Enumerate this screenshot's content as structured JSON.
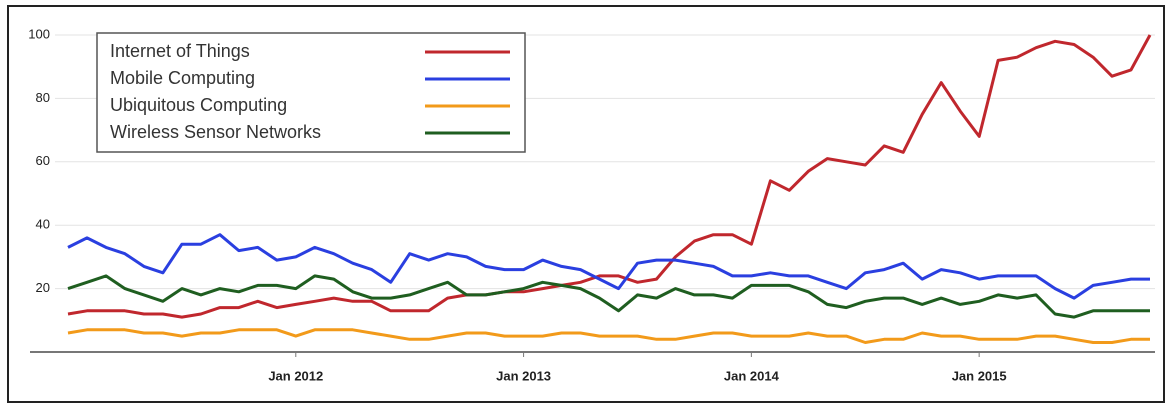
{
  "chart_data": {
    "type": "line",
    "x": [
      "2011-01",
      "2011-02",
      "2011-03",
      "2011-04",
      "2011-05",
      "2011-06",
      "2011-07",
      "2011-08",
      "2011-09",
      "2011-10",
      "2011-11",
      "2011-12",
      "2012-01",
      "2012-02",
      "2012-03",
      "2012-04",
      "2012-05",
      "2012-06",
      "2012-07",
      "2012-08",
      "2012-09",
      "2012-10",
      "2012-11",
      "2012-12",
      "2013-01",
      "2013-02",
      "2013-03",
      "2013-04",
      "2013-05",
      "2013-06",
      "2013-07",
      "2013-08",
      "2013-09",
      "2013-10",
      "2013-11",
      "2013-12",
      "2014-01",
      "2014-02",
      "2014-03",
      "2014-04",
      "2014-05",
      "2014-06",
      "2014-07",
      "2014-08",
      "2014-09",
      "2014-10",
      "2014-11",
      "2014-12",
      "2015-01",
      "2015-02",
      "2015-03",
      "2015-04",
      "2015-05",
      "2015-06",
      "2015-07",
      "2015-08",
      "2015-09",
      "2015-10"
    ],
    "series": [
      {
        "name": "Internet of Things",
        "color": "#c0272d",
        "values": [
          12,
          13,
          13,
          13,
          12,
          12,
          11,
          12,
          14,
          14,
          16,
          14,
          15,
          16,
          17,
          16,
          16,
          13,
          13,
          13,
          17,
          18,
          18,
          19,
          19,
          20,
          21,
          22,
          24,
          24,
          22,
          23,
          30,
          35,
          37,
          37,
          34,
          54,
          51,
          57,
          61,
          60,
          59,
          65,
          63,
          75,
          85,
          76,
          68,
          92,
          93,
          96,
          98,
          97,
          93,
          87,
          89,
          100
        ]
      },
      {
        "name": "Mobile Computing",
        "color": "#2a3fe0",
        "values": [
          33,
          36,
          33,
          31,
          27,
          25,
          34,
          34,
          37,
          32,
          33,
          29,
          30,
          33,
          31,
          28,
          26,
          22,
          31,
          29,
          31,
          30,
          27,
          26,
          26,
          29,
          27,
          26,
          23,
          20,
          28,
          29,
          29,
          28,
          27,
          24,
          24,
          25,
          24,
          24,
          22,
          20,
          25,
          26,
          28,
          23,
          26,
          25,
          23,
          24,
          24,
          24,
          20,
          17,
          21,
          22,
          23,
          23
        ]
      },
      {
        "name": "Ubiquitous Computing",
        "color": "#f29a1a",
        "values": [
          6,
          7,
          7,
          7,
          6,
          6,
          5,
          6,
          6,
          7,
          7,
          7,
          5,
          7,
          7,
          7,
          6,
          5,
          4,
          4,
          5,
          6,
          6,
          5,
          5,
          5,
          6,
          6,
          5,
          5,
          5,
          4,
          4,
          5,
          6,
          6,
          5,
          5,
          5,
          6,
          5,
          5,
          3,
          4,
          4,
          6,
          5,
          5,
          4,
          4,
          4,
          5,
          5,
          4,
          3,
          3,
          4,
          4
        ]
      },
      {
        "name": "Wireless Sensor Networks",
        "color": "#1f5e20",
        "values": [
          20,
          22,
          24,
          20,
          18,
          16,
          20,
          18,
          20,
          19,
          21,
          21,
          20,
          24,
          23,
          19,
          17,
          17,
          18,
          20,
          22,
          18,
          18,
          19,
          20,
          22,
          21,
          20,
          17,
          13,
          18,
          17,
          20,
          18,
          18,
          17,
          21,
          21,
          21,
          19,
          15,
          14,
          16,
          17,
          17,
          15,
          17,
          15,
          16,
          18,
          17,
          18,
          12,
          11,
          13,
          13,
          13,
          13
        ]
      }
    ],
    "xlim": [
      "2011-01",
      "2015-10"
    ],
    "xticks": [
      {
        "value": "2012-01",
        "label": "Jan 2012"
      },
      {
        "value": "2013-01",
        "label": "Jan 2013"
      },
      {
        "value": "2014-01",
        "label": "Jan 2014"
      },
      {
        "value": "2015-01",
        "label": "Jan 2015"
      }
    ],
    "ylim": [
      0,
      100
    ],
    "yticks": [
      20,
      40,
      60,
      80,
      100
    ],
    "grid": true,
    "legend": "upper-left"
  }
}
